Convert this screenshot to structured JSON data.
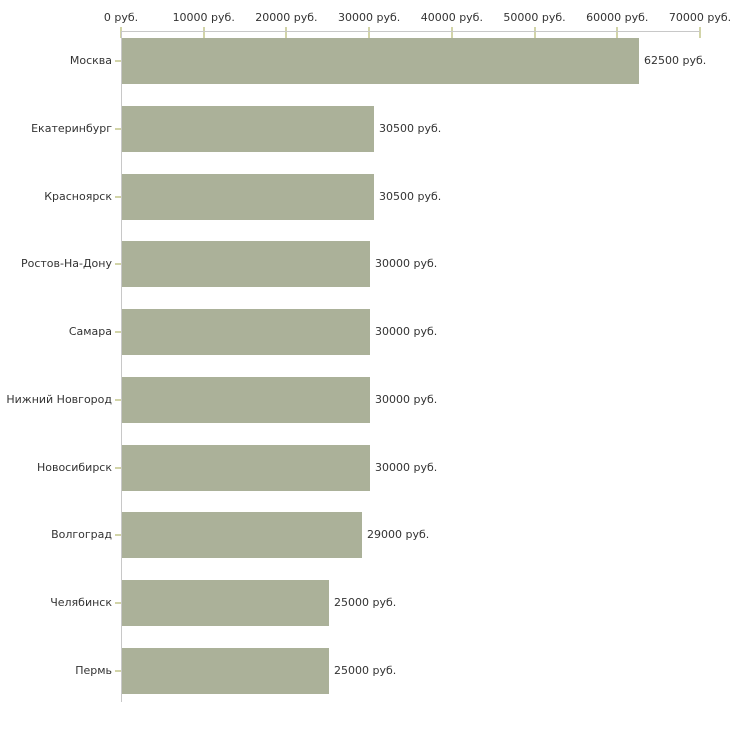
{
  "chart_data": {
    "type": "bar",
    "orientation": "horizontal",
    "title": "",
    "xlabel": "",
    "ylabel": "",
    "categories": [
      "Москва",
      "Екатеринбург",
      "Красноярск",
      "Ростов-На-Дону",
      "Самара",
      "Нижний Новгород",
      "Новосибирск",
      "Волгоград",
      "Челябинск",
      "Пермь"
    ],
    "values": [
      62500,
      30500,
      30500,
      30000,
      30000,
      30000,
      30000,
      29000,
      25000,
      25000
    ],
    "value_labels": [
      "62500 руб.",
      "30500 руб.",
      "30500 руб.",
      "30000 руб.",
      "30000 руб.",
      "30000 руб.",
      "30000 руб.",
      "29000 руб.",
      "25000 руб.",
      "25000 руб."
    ],
    "x_axis": {
      "position": "top",
      "min": 0,
      "max": 70000,
      "tick_interval": 10000,
      "tick_values": [
        0,
        10000,
        20000,
        30000,
        40000,
        50000,
        60000,
        70000
      ],
      "tick_labels": [
        "0 руб.",
        "10000 руб.",
        "20000 руб.",
        "30000 руб.",
        "40000 руб.",
        "50000 руб.",
        "60000 руб.",
        "70000 руб."
      ]
    },
    "grid": false,
    "legend": false,
    "colors": {
      "bar": "#abb199",
      "axis_line": "#c8c8c8",
      "tick_mark": "#d2d4a8",
      "text": "#333333",
      "background": "#ffffff"
    }
  }
}
